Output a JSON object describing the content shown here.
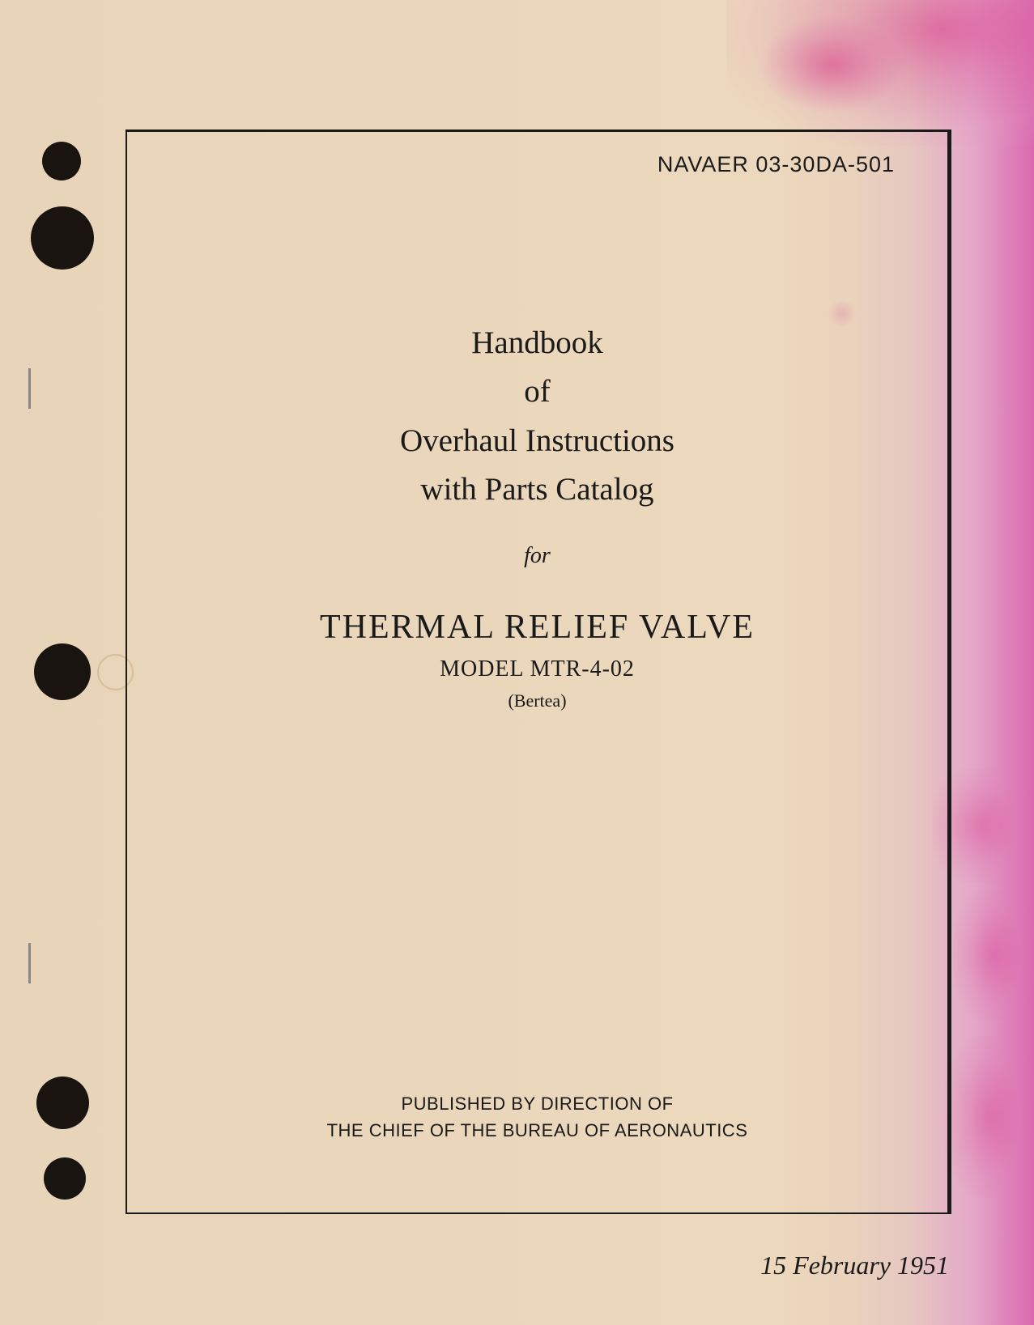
{
  "document": {
    "doc_number": "NAVAER 03-30DA-501",
    "title_lines": {
      "line1": "Handbook",
      "line2": "of",
      "line3": "Overhaul Instructions",
      "line4": "with Parts Catalog"
    },
    "for_word": "for",
    "subject": "THERMAL RELIEF VALVE",
    "model": "MODEL MTR-4-02",
    "manufacturer": "(Bertea)",
    "publisher_line1": "PUBLISHED BY DIRECTION OF",
    "publisher_line2": "THE CHIEF OF THE BUREAU OF AERONAUTICS",
    "date": "15 February 1951"
  },
  "styling": {
    "page_bg_base": "#e8d4b8",
    "page_bg_stain": "#da68b0",
    "text_color": "#1a1a1a",
    "frame_border_color": "#1a1a1a",
    "hole_color": "#1a1410",
    "title_fontsize": 39,
    "main_title_fontsize": 42,
    "model_fontsize": 28,
    "docnum_fontsize": 27,
    "date_fontsize": 32,
    "publisher_fontsize": 22,
    "font_serif": "Georgia, Times New Roman, serif",
    "font_sans": "Arial, Helvetica, sans-serif"
  }
}
